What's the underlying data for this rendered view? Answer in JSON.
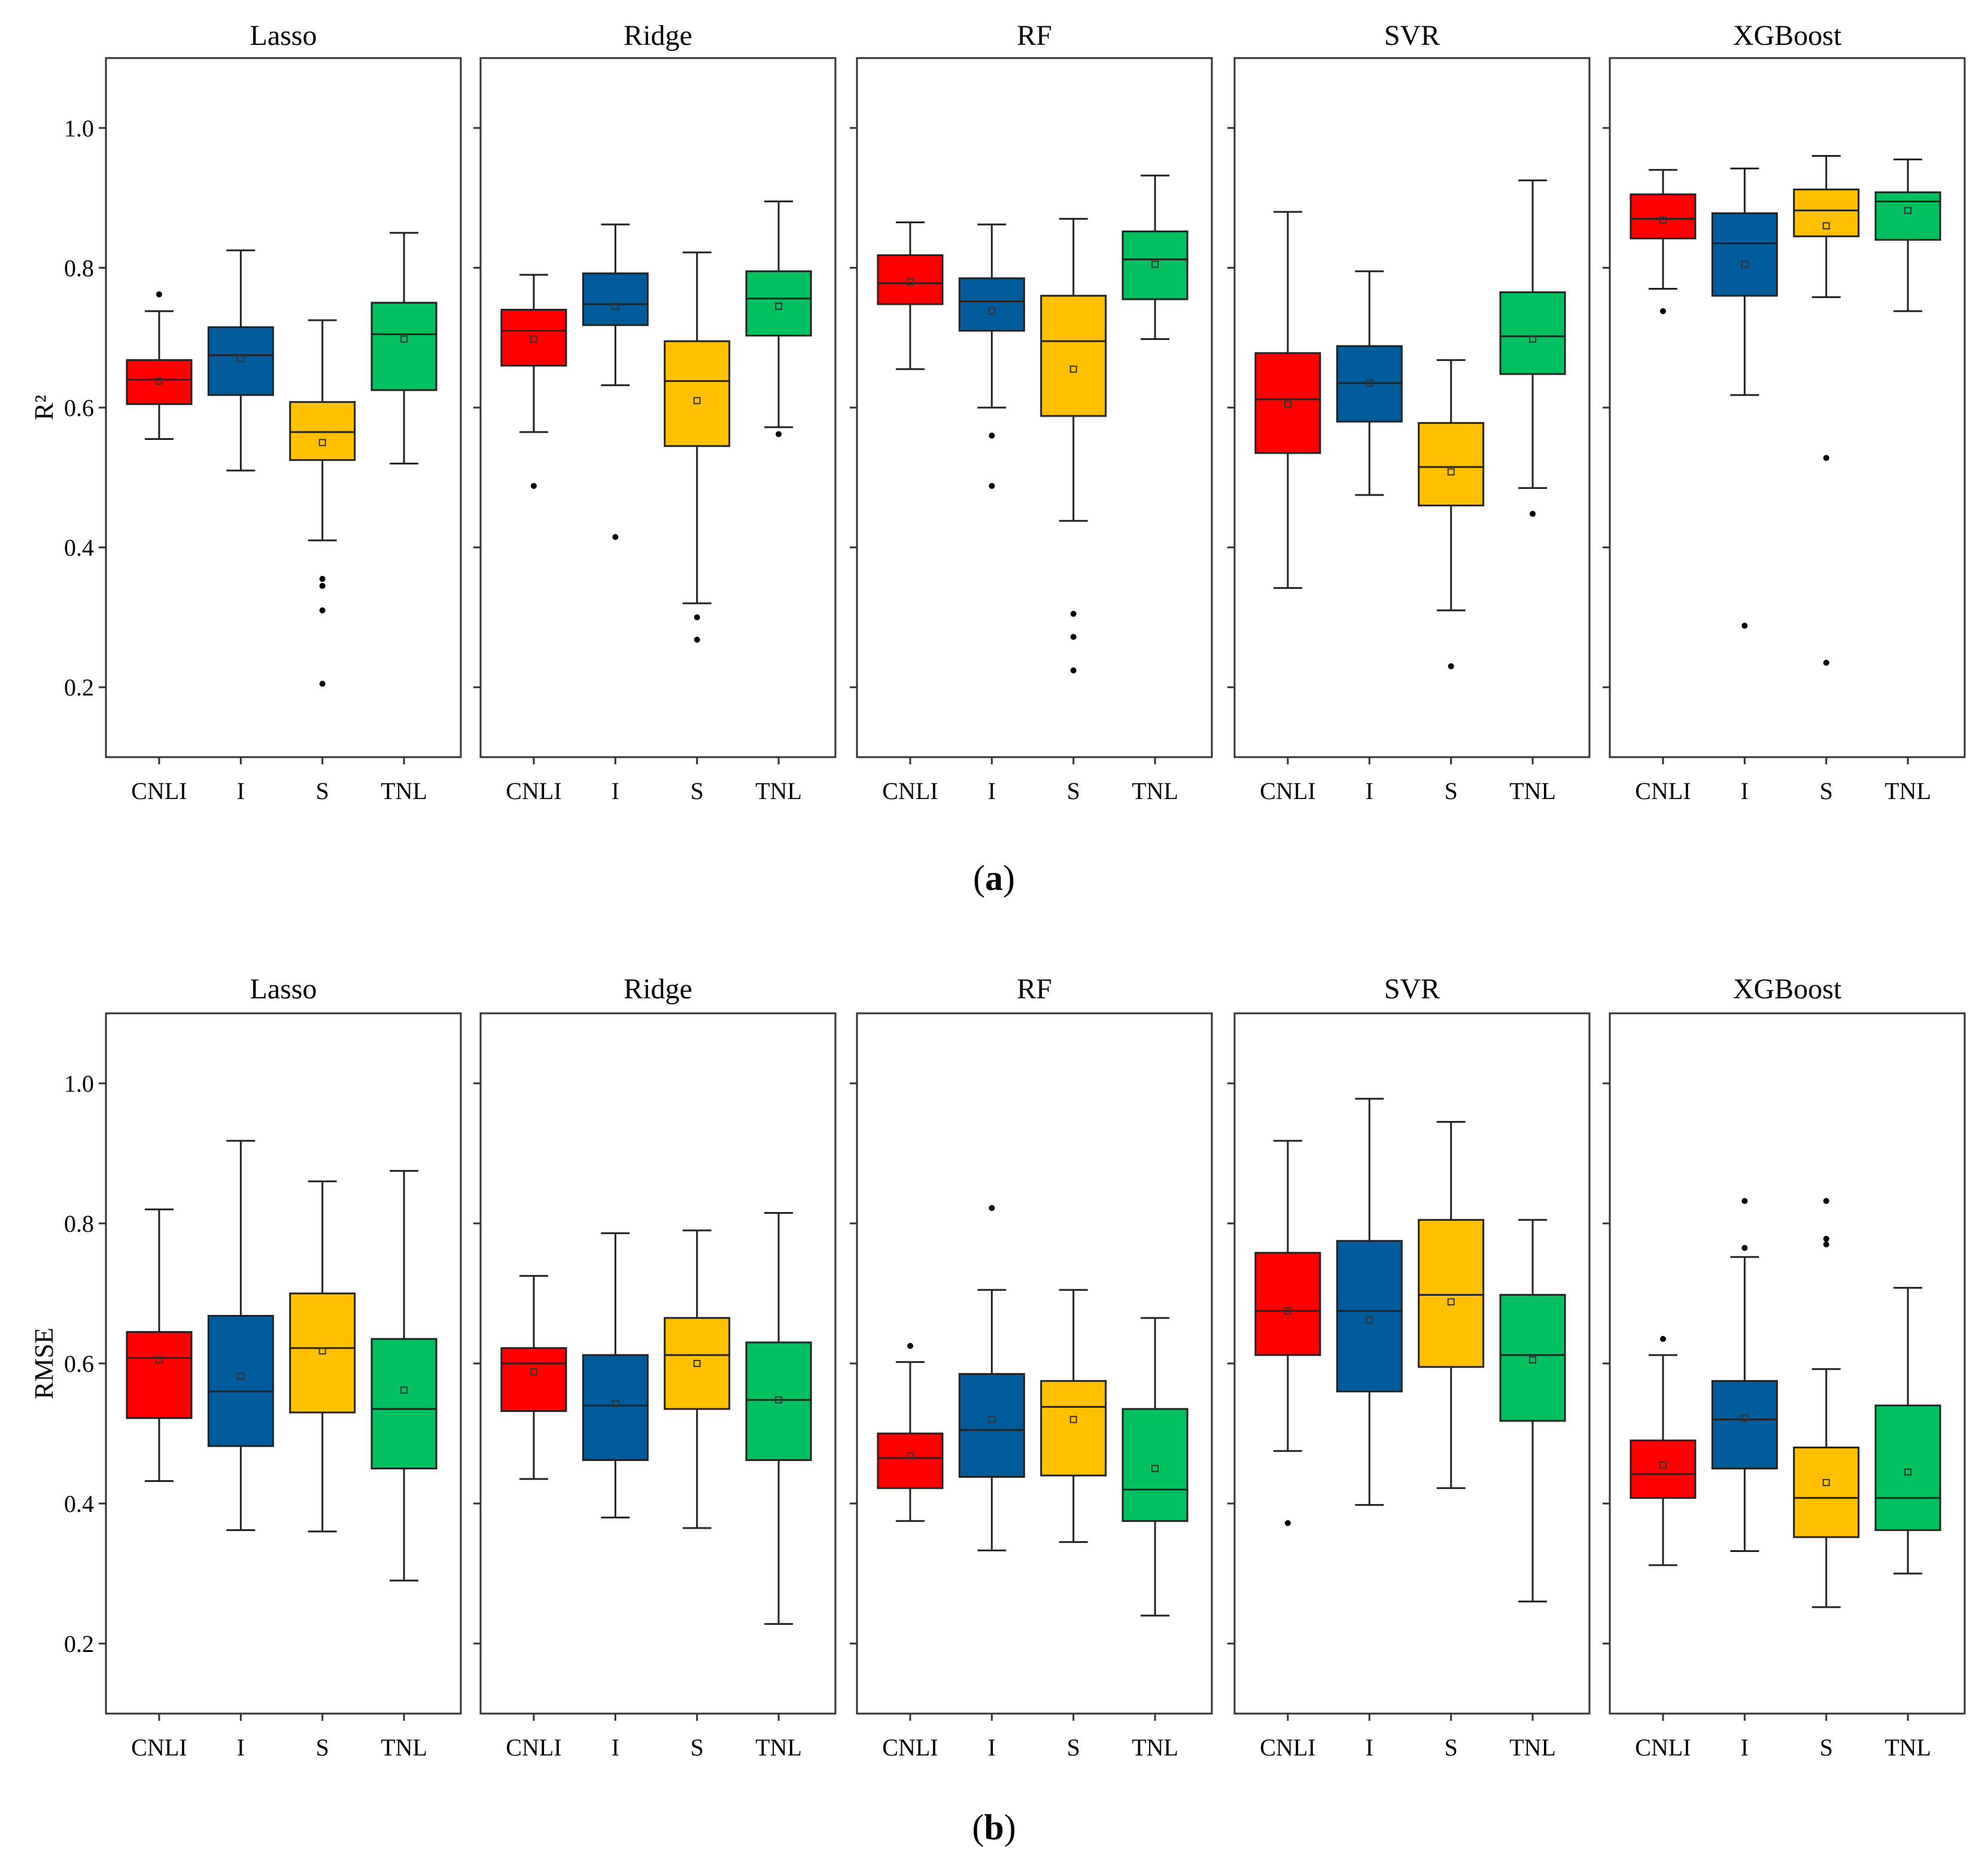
{
  "figure": {
    "caption_a": {
      "open": "(",
      "letter": "a",
      "close": ")"
    },
    "caption_b": {
      "open": "(",
      "letter": "b",
      "close": ")"
    }
  },
  "colors": {
    "CNLI": "#ff0000",
    "I": "#005b9a",
    "S": "#ffc000",
    "TNL": "#00c060"
  },
  "chart_data": [
    {
      "type": "boxplot",
      "id": "a",
      "ylabel": "R²",
      "ylim": [
        0.1,
        1.1
      ],
      "yticks": [
        0.2,
        0.4,
        0.6,
        0.8,
        1.0
      ],
      "ytick_labels": [
        "0.2",
        "0.4",
        "0.6",
        "0.8",
        "1.0"
      ],
      "categories": [
        "CNLI",
        "I",
        "S",
        "TNL"
      ],
      "panels": [
        {
          "title": "Lasso",
          "boxes": [
            {
              "cat": "CNLI",
              "wlo": 0.555,
              "q1": 0.605,
              "median": 0.64,
              "q3": 0.668,
              "whi": 0.738,
              "mean": 0.638,
              "outliers": [
                0.762
              ]
            },
            {
              "cat": "I",
              "wlo": 0.51,
              "q1": 0.618,
              "median": 0.675,
              "q3": 0.715,
              "whi": 0.825,
              "mean": 0.67,
              "outliers": []
            },
            {
              "cat": "S",
              "wlo": 0.41,
              "q1": 0.525,
              "median": 0.565,
              "q3": 0.608,
              "whi": 0.725,
              "mean": 0.55,
              "outliers": [
                0.355,
                0.345,
                0.31,
                0.205
              ]
            },
            {
              "cat": "TNL",
              "wlo": 0.52,
              "q1": 0.625,
              "median": 0.705,
              "q3": 0.75,
              "whi": 0.85,
              "mean": 0.698,
              "outliers": []
            }
          ]
        },
        {
          "title": "Ridge",
          "boxes": [
            {
              "cat": "CNLI",
              "wlo": 0.565,
              "q1": 0.66,
              "median": 0.71,
              "q3": 0.74,
              "whi": 0.79,
              "mean": 0.698,
              "outliers": [
                0.488
              ]
            },
            {
              "cat": "I",
              "wlo": 0.632,
              "q1": 0.718,
              "median": 0.748,
              "q3": 0.792,
              "whi": 0.862,
              "mean": 0.745,
              "outliers": [
                0.415
              ]
            },
            {
              "cat": "S",
              "wlo": 0.32,
              "q1": 0.545,
              "median": 0.638,
              "q3": 0.695,
              "whi": 0.822,
              "mean": 0.61,
              "outliers": [
                0.3,
                0.268
              ]
            },
            {
              "cat": "TNL",
              "wlo": 0.572,
              "q1": 0.703,
              "median": 0.756,
              "q3": 0.795,
              "whi": 0.895,
              "mean": 0.745,
              "outliers": [
                0.562
              ]
            }
          ]
        },
        {
          "title": "RF",
          "boxes": [
            {
              "cat": "CNLI",
              "wlo": 0.655,
              "q1": 0.748,
              "median": 0.778,
              "q3": 0.818,
              "whi": 0.865,
              "mean": 0.78,
              "outliers": []
            },
            {
              "cat": "I",
              "wlo": 0.6,
              "q1": 0.71,
              "median": 0.752,
              "q3": 0.785,
              "whi": 0.862,
              "mean": 0.738,
              "outliers": [
                0.56,
                0.488
              ]
            },
            {
              "cat": "S",
              "wlo": 0.438,
              "q1": 0.588,
              "median": 0.695,
              "q3": 0.76,
              "whi": 0.87,
              "mean": 0.655,
              "outliers": [
                0.305,
                0.272,
                0.224
              ]
            },
            {
              "cat": "TNL",
              "wlo": 0.698,
              "q1": 0.755,
              "median": 0.812,
              "q3": 0.852,
              "whi": 0.932,
              "mean": 0.805,
              "outliers": []
            }
          ]
        },
        {
          "title": "SVR",
          "boxes": [
            {
              "cat": "CNLI",
              "wlo": 0.342,
              "q1": 0.535,
              "median": 0.612,
              "q3": 0.678,
              "whi": 0.88,
              "mean": 0.605,
              "outliers": []
            },
            {
              "cat": "I",
              "wlo": 0.475,
              "q1": 0.58,
              "median": 0.635,
              "q3": 0.688,
              "whi": 0.795,
              "mean": 0.635,
              "outliers": []
            },
            {
              "cat": "S",
              "wlo": 0.31,
              "q1": 0.46,
              "median": 0.515,
              "q3": 0.578,
              "whi": 0.668,
              "mean": 0.508,
              "outliers": [
                0.23
              ]
            },
            {
              "cat": "TNL",
              "wlo": 0.485,
              "q1": 0.648,
              "median": 0.702,
              "q3": 0.765,
              "whi": 0.925,
              "mean": 0.698,
              "outliers": [
                0.448
              ]
            }
          ]
        },
        {
          "title": "XGBoost",
          "boxes": [
            {
              "cat": "CNLI",
              "wlo": 0.77,
              "q1": 0.842,
              "median": 0.87,
              "q3": 0.905,
              "whi": 0.94,
              "mean": 0.868,
              "outliers": [
                0.738
              ]
            },
            {
              "cat": "I",
              "wlo": 0.618,
              "q1": 0.76,
              "median": 0.835,
              "q3": 0.878,
              "whi": 0.942,
              "mean": 0.805,
              "outliers": [
                0.288
              ]
            },
            {
              "cat": "S",
              "wlo": 0.758,
              "q1": 0.845,
              "median": 0.882,
              "q3": 0.912,
              "whi": 0.96,
              "mean": 0.86,
              "outliers": [
                0.528,
                0.235
              ]
            },
            {
              "cat": "TNL",
              "wlo": 0.738,
              "q1": 0.84,
              "median": 0.895,
              "q3": 0.908,
              "whi": 0.955,
              "mean": 0.882,
              "outliers": []
            }
          ]
        }
      ]
    },
    {
      "type": "boxplot",
      "id": "b",
      "ylabel": "RMSE",
      "ylim": [
        0.1,
        1.1
      ],
      "yticks": [
        0.2,
        0.4,
        0.6,
        0.8,
        1.0
      ],
      "ytick_labels": [
        "0.2",
        "0.4",
        "0.6",
        "0.8",
        "1.0"
      ],
      "categories": [
        "CNLI",
        "I",
        "S",
        "TNL"
      ],
      "panels": [
        {
          "title": "Lasso",
          "boxes": [
            {
              "cat": "CNLI",
              "wlo": 0.432,
              "q1": 0.522,
              "median": 0.608,
              "q3": 0.645,
              "whi": 0.82,
              "mean": 0.605,
              "outliers": []
            },
            {
              "cat": "I",
              "wlo": 0.362,
              "q1": 0.482,
              "median": 0.56,
              "q3": 0.668,
              "whi": 0.918,
              "mean": 0.582,
              "outliers": []
            },
            {
              "cat": "S",
              "wlo": 0.36,
              "q1": 0.53,
              "median": 0.622,
              "q3": 0.7,
              "whi": 0.86,
              "mean": 0.618,
              "outliers": []
            },
            {
              "cat": "TNL",
              "wlo": 0.29,
              "q1": 0.45,
              "median": 0.535,
              "q3": 0.635,
              "whi": 0.875,
              "mean": 0.562,
              "outliers": []
            }
          ]
        },
        {
          "title": "Ridge",
          "boxes": [
            {
              "cat": "CNLI",
              "wlo": 0.435,
              "q1": 0.532,
              "median": 0.6,
              "q3": 0.622,
              "whi": 0.725,
              "mean": 0.588,
              "outliers": []
            },
            {
              "cat": "I",
              "wlo": 0.38,
              "q1": 0.462,
              "median": 0.54,
              "q3": 0.612,
              "whi": 0.786,
              "mean": 0.543,
              "outliers": []
            },
            {
              "cat": "S",
              "wlo": 0.365,
              "q1": 0.535,
              "median": 0.612,
              "q3": 0.665,
              "whi": 0.79,
              "mean": 0.6,
              "outliers": []
            },
            {
              "cat": "TNL",
              "wlo": 0.228,
              "q1": 0.462,
              "median": 0.548,
              "q3": 0.63,
              "whi": 0.815,
              "mean": 0.548,
              "outliers": []
            }
          ]
        },
        {
          "title": "RF",
          "boxes": [
            {
              "cat": "CNLI",
              "wlo": 0.375,
              "q1": 0.422,
              "median": 0.465,
              "q3": 0.5,
              "whi": 0.602,
              "mean": 0.468,
              "outliers": [
                0.625
              ]
            },
            {
              "cat": "I",
              "wlo": 0.333,
              "q1": 0.438,
              "median": 0.505,
              "q3": 0.585,
              "whi": 0.705,
              "mean": 0.52,
              "outliers": [
                0.822
              ]
            },
            {
              "cat": "S",
              "wlo": 0.345,
              "q1": 0.44,
              "median": 0.538,
              "q3": 0.575,
              "whi": 0.705,
              "mean": 0.52,
              "outliers": []
            },
            {
              "cat": "TNL",
              "wlo": 0.24,
              "q1": 0.375,
              "median": 0.42,
              "q3": 0.535,
              "whi": 0.665,
              "mean": 0.45,
              "outliers": []
            }
          ]
        },
        {
          "title": "SVR",
          "boxes": [
            {
              "cat": "CNLI",
              "wlo": 0.475,
              "q1": 0.612,
              "median": 0.675,
              "q3": 0.758,
              "whi": 0.918,
              "mean": 0.675,
              "outliers": [
                0.372
              ]
            },
            {
              "cat": "I",
              "wlo": 0.398,
              "q1": 0.56,
              "median": 0.675,
              "q3": 0.775,
              "whi": 0.978,
              "mean": 0.662,
              "outliers": []
            },
            {
              "cat": "S",
              "wlo": 0.422,
              "q1": 0.595,
              "median": 0.698,
              "q3": 0.805,
              "whi": 0.945,
              "mean": 0.688,
              "outliers": []
            },
            {
              "cat": "TNL",
              "wlo": 0.26,
              "q1": 0.518,
              "median": 0.612,
              "q3": 0.698,
              "whi": 0.805,
              "mean": 0.605,
              "outliers": []
            }
          ]
        },
        {
          "title": "XGBoost",
          "boxes": [
            {
              "cat": "CNLI",
              "wlo": 0.312,
              "q1": 0.408,
              "median": 0.442,
              "q3": 0.49,
              "whi": 0.612,
              "mean": 0.455,
              "outliers": [
                0.635
              ]
            },
            {
              "cat": "I",
              "wlo": 0.332,
              "q1": 0.45,
              "median": 0.52,
              "q3": 0.575,
              "whi": 0.752,
              "mean": 0.522,
              "outliers": [
                0.832,
                0.765
              ]
            },
            {
              "cat": "S",
              "wlo": 0.252,
              "q1": 0.352,
              "median": 0.408,
              "q3": 0.48,
              "whi": 0.592,
              "mean": 0.43,
              "outliers": [
                0.832,
                0.778,
                0.77
              ]
            },
            {
              "cat": "TNL",
              "wlo": 0.3,
              "q1": 0.362,
              "median": 0.408,
              "q3": 0.54,
              "whi": 0.708,
              "mean": 0.445,
              "outliers": []
            }
          ]
        }
      ]
    }
  ]
}
